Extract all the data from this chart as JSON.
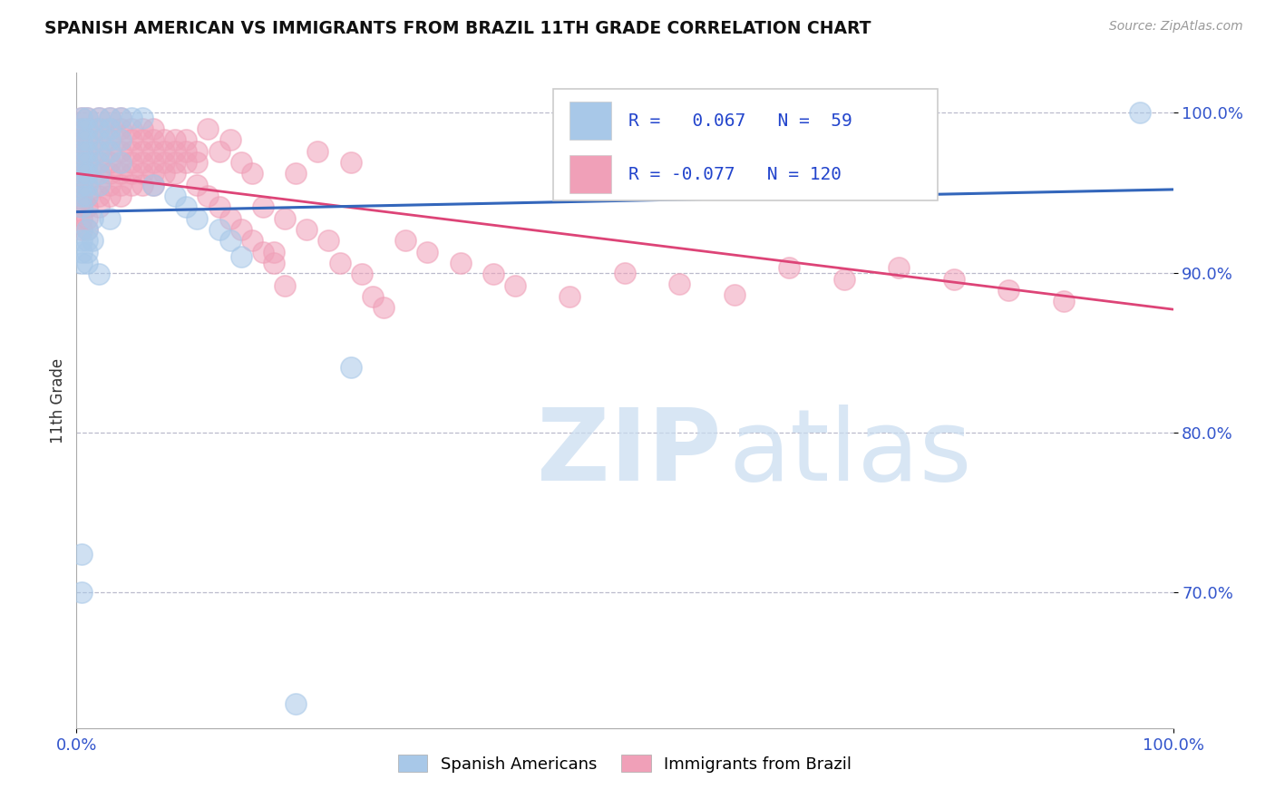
{
  "title": "SPANISH AMERICAN VS IMMIGRANTS FROM BRAZIL 11TH GRADE CORRELATION CHART",
  "source": "Source: ZipAtlas.com",
  "ylabel": "11th Grade",
  "ytick_labels": [
    "70.0%",
    "80.0%",
    "90.0%",
    "100.0%"
  ],
  "ytick_values": [
    0.7,
    0.8,
    0.9,
    1.0
  ],
  "xlim": [
    0.0,
    1.0
  ],
  "ylim": [
    0.615,
    1.025
  ],
  "R_blue": 0.067,
  "N_blue": 59,
  "R_pink": -0.077,
  "N_pink": 120,
  "blue_color": "#A8C8E8",
  "pink_color": "#F0A0B8",
  "blue_line_color": "#3366BB",
  "pink_line_color": "#DD4477",
  "legend_R_color": "#2244CC",
  "blue_line_y0": 0.938,
  "blue_line_y1": 0.952,
  "pink_line_y0": 0.962,
  "pink_line_y1": 0.877,
  "blue_scatter": [
    [
      0.005,
      0.997
    ],
    [
      0.01,
      0.997
    ],
    [
      0.02,
      0.997
    ],
    [
      0.03,
      0.997
    ],
    [
      0.04,
      0.997
    ],
    [
      0.05,
      0.997
    ],
    [
      0.06,
      0.997
    ],
    [
      0.005,
      0.99
    ],
    [
      0.01,
      0.99
    ],
    [
      0.02,
      0.99
    ],
    [
      0.03,
      0.99
    ],
    [
      0.005,
      0.983
    ],
    [
      0.01,
      0.983
    ],
    [
      0.02,
      0.983
    ],
    [
      0.03,
      0.983
    ],
    [
      0.04,
      0.983
    ],
    [
      0.005,
      0.976
    ],
    [
      0.01,
      0.976
    ],
    [
      0.02,
      0.976
    ],
    [
      0.03,
      0.976
    ],
    [
      0.005,
      0.969
    ],
    [
      0.01,
      0.969
    ],
    [
      0.02,
      0.969
    ],
    [
      0.04,
      0.969
    ],
    [
      0.005,
      0.962
    ],
    [
      0.01,
      0.962
    ],
    [
      0.02,
      0.962
    ],
    [
      0.005,
      0.955
    ],
    [
      0.01,
      0.955
    ],
    [
      0.02,
      0.955
    ],
    [
      0.005,
      0.948
    ],
    [
      0.01,
      0.948
    ],
    [
      0.005,
      0.941
    ],
    [
      0.015,
      0.934
    ],
    [
      0.03,
      0.934
    ],
    [
      0.01,
      0.927
    ],
    [
      0.005,
      0.92
    ],
    [
      0.01,
      0.92
    ],
    [
      0.015,
      0.92
    ],
    [
      0.005,
      0.913
    ],
    [
      0.01,
      0.913
    ],
    [
      0.005,
      0.906
    ],
    [
      0.01,
      0.906
    ],
    [
      0.02,
      0.899
    ],
    [
      0.07,
      0.955
    ],
    [
      0.09,
      0.948
    ],
    [
      0.1,
      0.941
    ],
    [
      0.11,
      0.934
    ],
    [
      0.13,
      0.927
    ],
    [
      0.14,
      0.92
    ],
    [
      0.15,
      0.91
    ],
    [
      0.25,
      0.841
    ],
    [
      0.005,
      0.724
    ],
    [
      0.005,
      0.7
    ],
    [
      0.2,
      0.63
    ],
    [
      0.97,
      1.0
    ]
  ],
  "pink_scatter": [
    [
      0.005,
      0.997
    ],
    [
      0.01,
      0.997
    ],
    [
      0.02,
      0.997
    ],
    [
      0.03,
      0.997
    ],
    [
      0.04,
      0.997
    ],
    [
      0.005,
      0.99
    ],
    [
      0.01,
      0.99
    ],
    [
      0.02,
      0.99
    ],
    [
      0.03,
      0.99
    ],
    [
      0.04,
      0.99
    ],
    [
      0.05,
      0.99
    ],
    [
      0.06,
      0.99
    ],
    [
      0.07,
      0.99
    ],
    [
      0.005,
      0.983
    ],
    [
      0.01,
      0.983
    ],
    [
      0.02,
      0.983
    ],
    [
      0.03,
      0.983
    ],
    [
      0.04,
      0.983
    ],
    [
      0.05,
      0.983
    ],
    [
      0.06,
      0.983
    ],
    [
      0.07,
      0.983
    ],
    [
      0.08,
      0.983
    ],
    [
      0.09,
      0.983
    ],
    [
      0.1,
      0.983
    ],
    [
      0.005,
      0.976
    ],
    [
      0.01,
      0.976
    ],
    [
      0.02,
      0.976
    ],
    [
      0.03,
      0.976
    ],
    [
      0.04,
      0.976
    ],
    [
      0.05,
      0.976
    ],
    [
      0.06,
      0.976
    ],
    [
      0.07,
      0.976
    ],
    [
      0.08,
      0.976
    ],
    [
      0.09,
      0.976
    ],
    [
      0.1,
      0.976
    ],
    [
      0.11,
      0.976
    ],
    [
      0.005,
      0.969
    ],
    [
      0.01,
      0.969
    ],
    [
      0.02,
      0.969
    ],
    [
      0.03,
      0.969
    ],
    [
      0.04,
      0.969
    ],
    [
      0.05,
      0.969
    ],
    [
      0.06,
      0.969
    ],
    [
      0.07,
      0.969
    ],
    [
      0.08,
      0.969
    ],
    [
      0.09,
      0.969
    ],
    [
      0.1,
      0.969
    ],
    [
      0.11,
      0.969
    ],
    [
      0.005,
      0.962
    ],
    [
      0.01,
      0.962
    ],
    [
      0.02,
      0.962
    ],
    [
      0.03,
      0.962
    ],
    [
      0.04,
      0.962
    ],
    [
      0.05,
      0.962
    ],
    [
      0.06,
      0.962
    ],
    [
      0.07,
      0.962
    ],
    [
      0.08,
      0.962
    ],
    [
      0.09,
      0.962
    ],
    [
      0.005,
      0.955
    ],
    [
      0.01,
      0.955
    ],
    [
      0.02,
      0.955
    ],
    [
      0.03,
      0.955
    ],
    [
      0.04,
      0.955
    ],
    [
      0.05,
      0.955
    ],
    [
      0.06,
      0.955
    ],
    [
      0.07,
      0.955
    ],
    [
      0.005,
      0.948
    ],
    [
      0.01,
      0.948
    ],
    [
      0.02,
      0.948
    ],
    [
      0.03,
      0.948
    ],
    [
      0.04,
      0.948
    ],
    [
      0.005,
      0.941
    ],
    [
      0.01,
      0.941
    ],
    [
      0.02,
      0.941
    ],
    [
      0.005,
      0.934
    ],
    [
      0.01,
      0.934
    ],
    [
      0.005,
      0.927
    ],
    [
      0.01,
      0.927
    ],
    [
      0.12,
      0.99
    ],
    [
      0.14,
      0.983
    ],
    [
      0.13,
      0.976
    ],
    [
      0.15,
      0.969
    ],
    [
      0.16,
      0.962
    ],
    [
      0.11,
      0.955
    ],
    [
      0.12,
      0.948
    ],
    [
      0.13,
      0.941
    ],
    [
      0.14,
      0.934
    ],
    [
      0.15,
      0.927
    ],
    [
      0.16,
      0.92
    ],
    [
      0.17,
      0.913
    ],
    [
      0.18,
      0.906
    ],
    [
      0.2,
      0.962
    ],
    [
      0.22,
      0.976
    ],
    [
      0.25,
      0.969
    ],
    [
      0.17,
      0.941
    ],
    [
      0.19,
      0.934
    ],
    [
      0.21,
      0.927
    ],
    [
      0.23,
      0.92
    ],
    [
      0.18,
      0.913
    ],
    [
      0.24,
      0.906
    ],
    [
      0.26,
      0.899
    ],
    [
      0.19,
      0.892
    ],
    [
      0.27,
      0.885
    ],
    [
      0.28,
      0.878
    ],
    [
      0.3,
      0.92
    ],
    [
      0.32,
      0.913
    ],
    [
      0.35,
      0.906
    ],
    [
      0.38,
      0.899
    ],
    [
      0.4,
      0.892
    ],
    [
      0.45,
      0.885
    ],
    [
      0.5,
      0.9
    ],
    [
      0.55,
      0.893
    ],
    [
      0.6,
      0.886
    ],
    [
      0.65,
      0.903
    ],
    [
      0.7,
      0.896
    ],
    [
      0.75,
      0.903
    ],
    [
      0.8,
      0.896
    ],
    [
      0.85,
      0.889
    ],
    [
      0.9,
      0.882
    ]
  ]
}
